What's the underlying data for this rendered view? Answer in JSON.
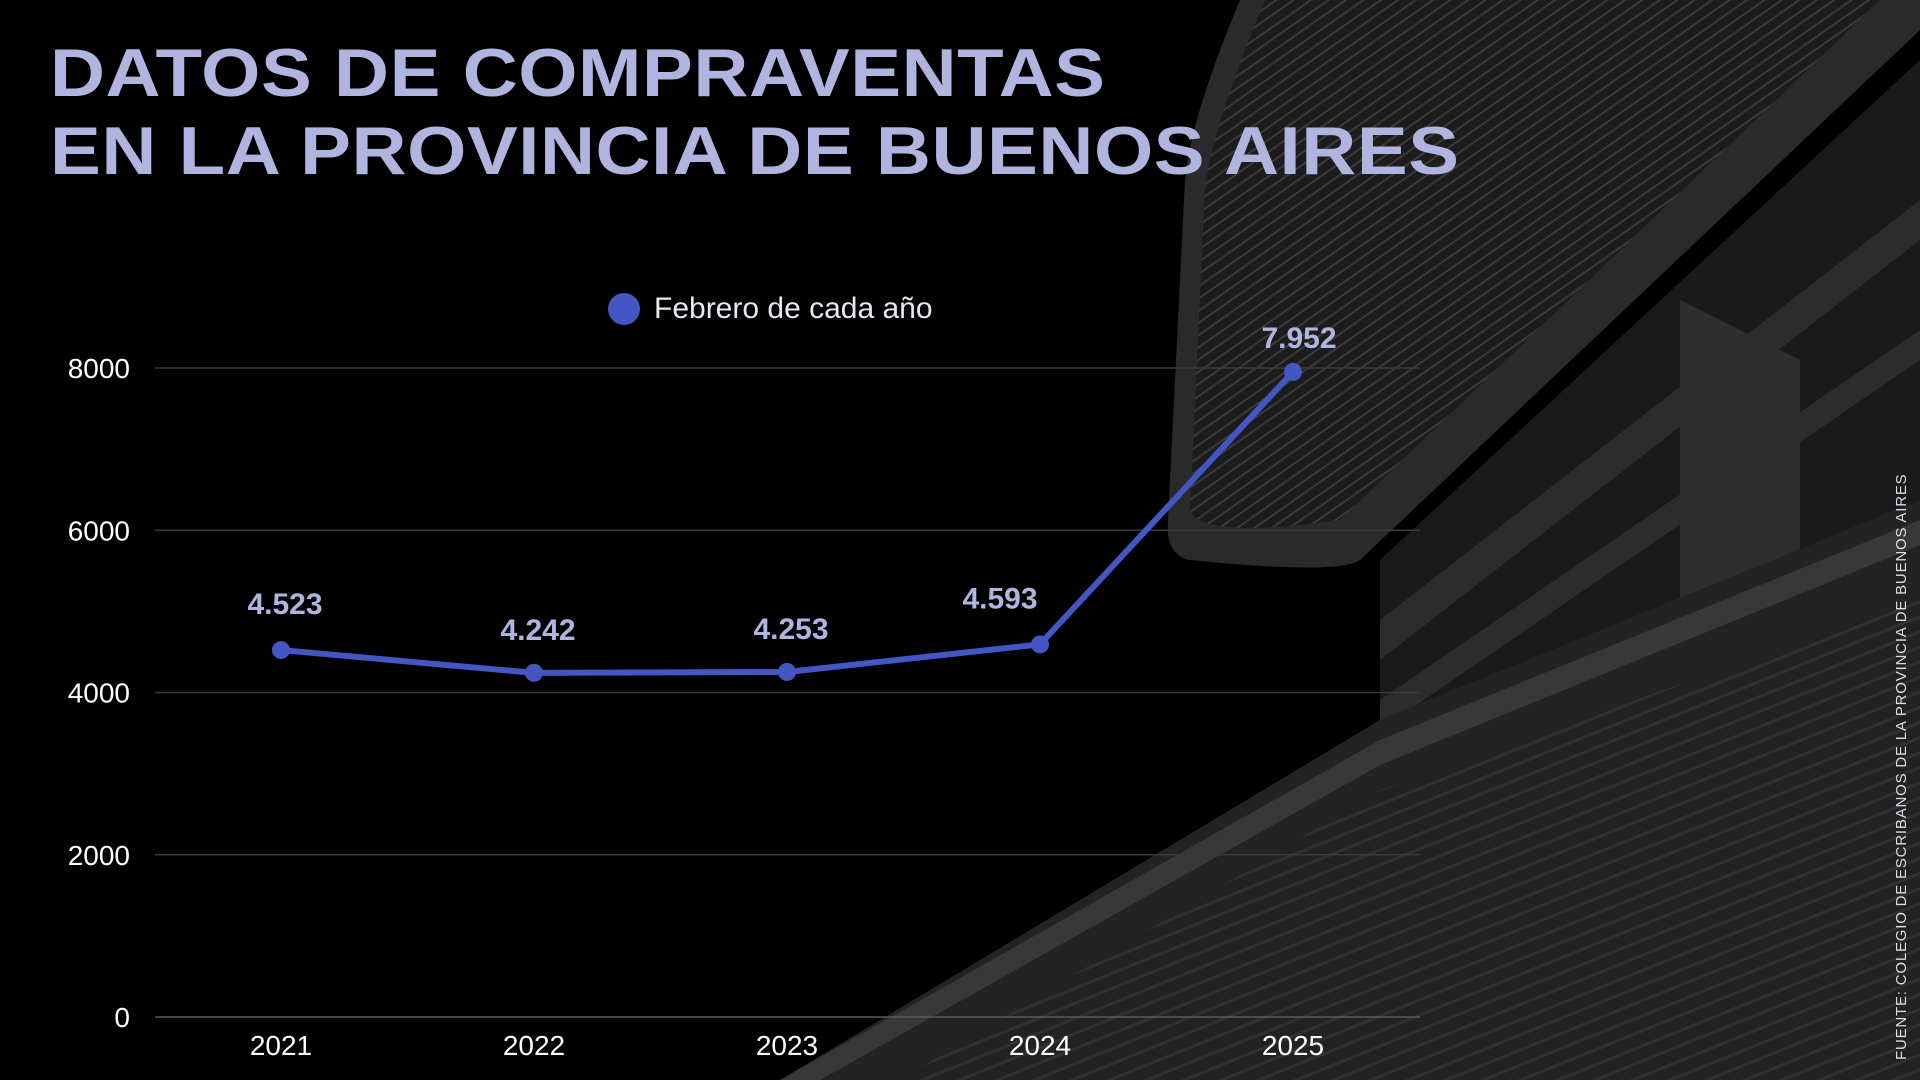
{
  "title": {
    "line1": "DATOS DE COMPRAVENTAS",
    "line2": "EN LA PROVINCIA DE BUENOS AIRES"
  },
  "legend": {
    "label": "Febrero de cada año",
    "marker_color": "#4356C4"
  },
  "source": "FUENTE: COLEGIO DE ESCRIBANOS DE LA PROVINCIA DE BUENOS AIRES",
  "colors": {
    "background": "#000000",
    "title": "#B0B5E0",
    "line": "#4356C4",
    "data_label": "#B0B5E0",
    "axis_text": "#FFFFFF",
    "grid": "#3A3A3A"
  },
  "chart_data": {
    "type": "line",
    "title": "DATOS DE COMPRAVENTAS EN LA PROVINCIA DE BUENOS AIRES",
    "categories": [
      "2021",
      "2022",
      "2023",
      "2024",
      "2025"
    ],
    "series": [
      {
        "name": "Febrero de cada año",
        "values": [
          4523,
          4242,
          4253,
          4593,
          7952
        ],
        "labels": [
          "4.523",
          "4.242",
          "4.253",
          "4.593",
          "7.952"
        ]
      }
    ],
    "xlabel": "",
    "ylabel": "",
    "yticks": [
      "0",
      "2000",
      "4000",
      "6000",
      "8000"
    ],
    "ylim": [
      0,
      8000
    ],
    "grid": true,
    "legend_position": "top-center"
  }
}
